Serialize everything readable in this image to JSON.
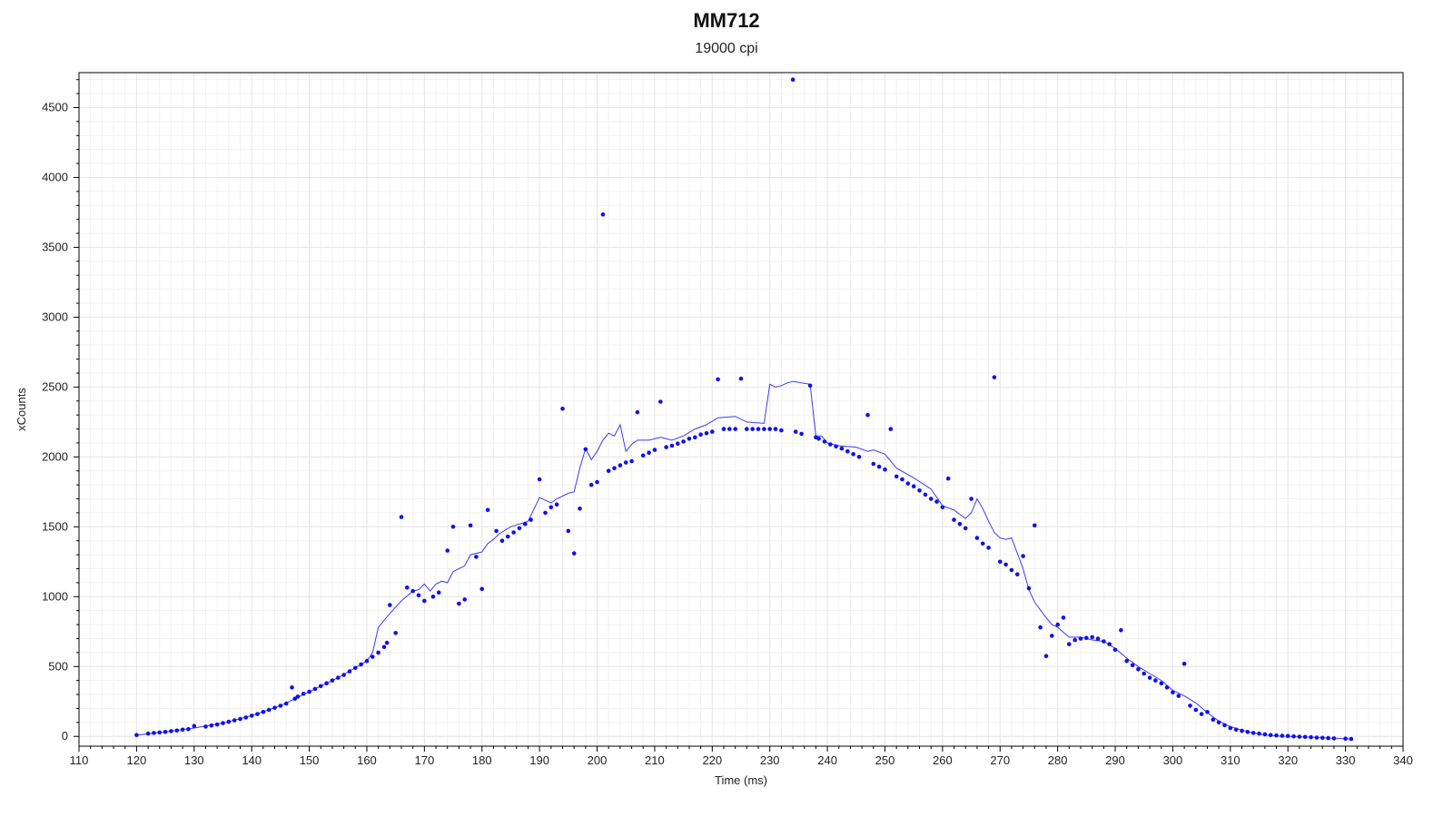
{
  "chart_data": {
    "type": "scatter",
    "title": "MM712",
    "subtitle": "19000 cpi",
    "xlabel": "Time (ms)",
    "ylabel": "xCounts",
    "xlim": [
      110,
      340
    ],
    "ylim": [
      -70,
      4750
    ],
    "x_ticks": [
      110,
      120,
      130,
      140,
      150,
      160,
      170,
      180,
      190,
      200,
      210,
      220,
      230,
      240,
      250,
      260,
      270,
      280,
      290,
      300,
      310,
      320,
      330,
      340
    ],
    "y_ticks": [
      0,
      500,
      1000,
      1500,
      2000,
      2500,
      3000,
      3500,
      4000,
      4500
    ],
    "grid": true,
    "colors": {
      "points": "#1010ee",
      "line": "#3b3bf0",
      "grid": "#e6e6e6",
      "axis": "#000000"
    },
    "series": [
      {
        "kind": "scatter",
        "points": [
          [
            120,
            10
          ],
          [
            122,
            20
          ],
          [
            123,
            25
          ],
          [
            124,
            28
          ],
          [
            125,
            32
          ],
          [
            126,
            38
          ],
          [
            127,
            42
          ],
          [
            128,
            48
          ],
          [
            129,
            52
          ],
          [
            130,
            75
          ],
          [
            132,
            70
          ],
          [
            133,
            78
          ],
          [
            134,
            85
          ],
          [
            135,
            95
          ],
          [
            136,
            105
          ],
          [
            137,
            115
          ],
          [
            138,
            125
          ],
          [
            139,
            135
          ],
          [
            140,
            148
          ],
          [
            141,
            160
          ],
          [
            142,
            175
          ],
          [
            143,
            190
          ],
          [
            144,
            205
          ],
          [
            145,
            220
          ],
          [
            146,
            235
          ],
          [
            147,
            350
          ],
          [
            147.5,
            270
          ],
          [
            148,
            285
          ],
          [
            149,
            305
          ],
          [
            150,
            320
          ],
          [
            151,
            340
          ],
          [
            152,
            360
          ],
          [
            153,
            380
          ],
          [
            154,
            400
          ],
          [
            155,
            420
          ],
          [
            156,
            440
          ],
          [
            157,
            465
          ],
          [
            158,
            490
          ],
          [
            159,
            515
          ],
          [
            160,
            540
          ],
          [
            161,
            570
          ],
          [
            162,
            600
          ],
          [
            163,
            640
          ],
          [
            163.5,
            670
          ],
          [
            164,
            940
          ],
          [
            165,
            740
          ],
          [
            166,
            1570
          ],
          [
            167,
            1065
          ],
          [
            168,
            1040
          ],
          [
            169,
            1010
          ],
          [
            170,
            970
          ],
          [
            171.5,
            1000
          ],
          [
            172.5,
            1030
          ],
          [
            174,
            1330
          ],
          [
            175,
            1500
          ],
          [
            176,
            950
          ],
          [
            177,
            980
          ],
          [
            178,
            1510
          ],
          [
            179,
            1285
          ],
          [
            180,
            1055
          ],
          [
            181,
            1620
          ],
          [
            182.5,
            1470
          ],
          [
            183.5,
            1400
          ],
          [
            184.5,
            1430
          ],
          [
            185.5,
            1460
          ],
          [
            186.5,
            1490
          ],
          [
            187.5,
            1520
          ],
          [
            188.5,
            1550
          ],
          [
            190,
            1840
          ],
          [
            191,
            1600
          ],
          [
            192,
            1640
          ],
          [
            193,
            1660
          ],
          [
            194,
            2345
          ],
          [
            195,
            1470
          ],
          [
            196,
            1310
          ],
          [
            197,
            1630
          ],
          [
            198,
            2055
          ],
          [
            199,
            1800
          ],
          [
            200,
            1820
          ],
          [
            201,
            3735
          ],
          [
            202,
            1900
          ],
          [
            203,
            1920
          ],
          [
            204,
            1940
          ],
          [
            205,
            1960
          ],
          [
            206,
            1970
          ],
          [
            207,
            2320
          ],
          [
            208,
            2010
          ],
          [
            209,
            2030
          ],
          [
            210,
            2050
          ],
          [
            211,
            2395
          ],
          [
            212,
            2070
          ],
          [
            213,
            2080
          ],
          [
            214,
            2095
          ],
          [
            215,
            2110
          ],
          [
            216,
            2130
          ],
          [
            217,
            2140
          ],
          [
            218,
            2160
          ],
          [
            219,
            2170
          ],
          [
            220,
            2180
          ],
          [
            221,
            2555
          ],
          [
            222,
            2200
          ],
          [
            223,
            2200
          ],
          [
            224,
            2200
          ],
          [
            225,
            2560
          ],
          [
            226,
            2200
          ],
          [
            227,
            2200
          ],
          [
            228,
            2200
          ],
          [
            229,
            2200
          ],
          [
            230,
            2200
          ],
          [
            231,
            2200
          ],
          [
            232,
            2190
          ],
          [
            234,
            4700
          ],
          [
            234.5,
            2180
          ],
          [
            235.5,
            2165
          ],
          [
            237,
            2510
          ],
          [
            238,
            2140
          ],
          [
            238.5,
            2130
          ],
          [
            239.5,
            2110
          ],
          [
            240.5,
            2090
          ],
          [
            241.5,
            2075
          ],
          [
            242.5,
            2060
          ],
          [
            243.5,
            2040
          ],
          [
            244.5,
            2020
          ],
          [
            245.5,
            2000
          ],
          [
            247,
            2300
          ],
          [
            248,
            1950
          ],
          [
            249,
            1930
          ],
          [
            250,
            1910
          ],
          [
            251,
            2200
          ],
          [
            252,
            1860
          ],
          [
            253,
            1840
          ],
          [
            254,
            1810
          ],
          [
            255,
            1790
          ],
          [
            256,
            1760
          ],
          [
            257,
            1730
          ],
          [
            258,
            1700
          ],
          [
            259,
            1680
          ],
          [
            260,
            1640
          ],
          [
            261,
            1845
          ],
          [
            262,
            1550
          ],
          [
            263,
            1520
          ],
          [
            264,
            1490
          ],
          [
            265,
            1700
          ],
          [
            266,
            1420
          ],
          [
            267,
            1380
          ],
          [
            268,
            1350
          ],
          [
            269,
            2570
          ],
          [
            270,
            1250
          ],
          [
            271,
            1230
          ],
          [
            272,
            1190
          ],
          [
            273,
            1160
          ],
          [
            274,
            1290
          ],
          [
            275,
            1060
          ],
          [
            276,
            1510
          ],
          [
            277,
            780
          ],
          [
            278,
            575
          ],
          [
            279,
            720
          ],
          [
            280,
            800
          ],
          [
            281,
            850
          ],
          [
            282,
            660
          ],
          [
            283,
            690
          ],
          [
            284,
            700
          ],
          [
            285,
            705
          ],
          [
            286,
            710
          ],
          [
            287,
            700
          ],
          [
            288,
            680
          ],
          [
            289,
            660
          ],
          [
            290,
            620
          ],
          [
            291,
            760
          ],
          [
            292,
            540
          ],
          [
            293,
            510
          ],
          [
            294,
            480
          ],
          [
            295,
            450
          ],
          [
            296,
            420
          ],
          [
            297,
            400
          ],
          [
            298,
            380
          ],
          [
            299,
            350
          ],
          [
            300,
            315
          ],
          [
            301,
            290
          ],
          [
            302,
            520
          ],
          [
            303,
            220
          ],
          [
            304,
            190
          ],
          [
            305,
            160
          ],
          [
            306,
            175
          ],
          [
            307,
            120
          ],
          [
            308,
            100
          ],
          [
            309,
            80
          ],
          [
            310,
            60
          ],
          [
            311,
            48
          ],
          [
            312,
            40
          ],
          [
            313,
            32
          ],
          [
            314,
            25
          ],
          [
            315,
            20
          ],
          [
            316,
            15
          ],
          [
            317,
            10
          ],
          [
            318,
            7
          ],
          [
            319,
            5
          ],
          [
            320,
            3
          ],
          [
            321,
            0
          ],
          [
            322,
            -2
          ],
          [
            323,
            -4
          ],
          [
            324,
            -6
          ],
          [
            325,
            -8
          ],
          [
            326,
            -10
          ],
          [
            327,
            -12
          ],
          [
            328,
            -14
          ],
          [
            330,
            -16
          ],
          [
            331,
            -18
          ]
        ]
      },
      {
        "kind": "line",
        "points": [
          [
            120,
            10
          ],
          [
            125,
            32
          ],
          [
            130,
            60
          ],
          [
            135,
            95
          ],
          [
            140,
            148
          ],
          [
            145,
            220
          ],
          [
            150,
            320
          ],
          [
            155,
            420
          ],
          [
            160,
            540
          ],
          [
            161,
            600
          ],
          [
            162,
            780
          ],
          [
            164,
            880
          ],
          [
            166,
            970
          ],
          [
            168,
            1040
          ],
          [
            169,
            1050
          ],
          [
            170,
            1090
          ],
          [
            171,
            1040
          ],
          [
            172,
            1090
          ],
          [
            173,
            1110
          ],
          [
            174,
            1100
          ],
          [
            175,
            1180
          ],
          [
            177,
            1220
          ],
          [
            178,
            1300
          ],
          [
            180,
            1320
          ],
          [
            181,
            1380
          ],
          [
            182,
            1410
          ],
          [
            183,
            1450
          ],
          [
            185,
            1500
          ],
          [
            188,
            1540
          ],
          [
            190,
            1710
          ],
          [
            192,
            1670
          ],
          [
            193,
            1700
          ],
          [
            195,
            1740
          ],
          [
            196,
            1750
          ],
          [
            197,
            1920
          ],
          [
            198,
            2060
          ],
          [
            199,
            1980
          ],
          [
            200,
            2040
          ],
          [
            201,
            2120
          ],
          [
            202,
            2170
          ],
          [
            203,
            2150
          ],
          [
            204,
            2230
          ],
          [
            205,
            2040
          ],
          [
            206,
            2090
          ],
          [
            207,
            2120
          ],
          [
            209,
            2120
          ],
          [
            211,
            2140
          ],
          [
            213,
            2120
          ],
          [
            215,
            2150
          ],
          [
            217,
            2200
          ],
          [
            219,
            2230
          ],
          [
            221,
            2280
          ],
          [
            224,
            2290
          ],
          [
            226,
            2250
          ],
          [
            229,
            2240
          ],
          [
            230,
            2520
          ],
          [
            231,
            2500
          ],
          [
            232,
            2510
          ],
          [
            233,
            2530
          ],
          [
            234,
            2540
          ],
          [
            237,
            2520
          ],
          [
            238,
            2150
          ],
          [
            239,
            2150
          ],
          [
            240,
            2100
          ],
          [
            242,
            2080
          ],
          [
            245,
            2070
          ],
          [
            247,
            2040
          ],
          [
            248,
            2050
          ],
          [
            250,
            2020
          ],
          [
            252,
            1920
          ],
          [
            255,
            1850
          ],
          [
            258,
            1770
          ],
          [
            260,
            1650
          ],
          [
            262,
            1620
          ],
          [
            264,
            1560
          ],
          [
            265,
            1600
          ],
          [
            266,
            1700
          ],
          [
            267,
            1630
          ],
          [
            268,
            1540
          ],
          [
            269,
            1460
          ],
          [
            270,
            1420
          ],
          [
            271,
            1410
          ],
          [
            272,
            1420
          ],
          [
            273,
            1310
          ],
          [
            274,
            1200
          ],
          [
            275,
            1050
          ],
          [
            276,
            960
          ],
          [
            278,
            850
          ],
          [
            279,
            800
          ],
          [
            280,
            780
          ],
          [
            282,
            710
          ],
          [
            284,
            710
          ],
          [
            286,
            690
          ],
          [
            288,
            680
          ],
          [
            290,
            630
          ],
          [
            292,
            560
          ],
          [
            294,
            500
          ],
          [
            296,
            450
          ],
          [
            298,
            400
          ],
          [
            300,
            330
          ],
          [
            302,
            290
          ],
          [
            304,
            240
          ],
          [
            306,
            170
          ],
          [
            308,
            110
          ],
          [
            310,
            70
          ],
          [
            312,
            45
          ],
          [
            314,
            25
          ],
          [
            316,
            10
          ],
          [
            318,
            3
          ],
          [
            320,
            0
          ],
          [
            322,
            -3
          ],
          [
            324,
            -6
          ],
          [
            326,
            -10
          ],
          [
            328,
            -13
          ],
          [
            330,
            -16
          ],
          [
            331,
            -18
          ]
        ]
      }
    ]
  }
}
